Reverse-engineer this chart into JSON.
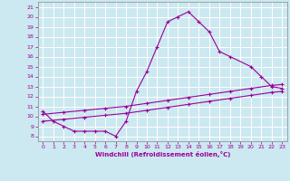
{
  "xlabel": "Windchill (Refroidissement éolien,°C)",
  "bg_color": "#cce8f0",
  "grid_color": "#ffffff",
  "line_color": "#990099",
  "spine_color": "#888888",
  "xlim": [
    -0.5,
    23.5
  ],
  "ylim": [
    7.5,
    21.5
  ],
  "xticks": [
    0,
    1,
    2,
    3,
    4,
    5,
    6,
    7,
    8,
    9,
    10,
    11,
    12,
    13,
    14,
    15,
    16,
    17,
    18,
    19,
    20,
    21,
    22,
    23
  ],
  "yticks": [
    8,
    9,
    10,
    11,
    12,
    13,
    14,
    15,
    16,
    17,
    18,
    19,
    20,
    21
  ],
  "line1_x": [
    0,
    1,
    2,
    3,
    4,
    5,
    6,
    7,
    8,
    9,
    10,
    11,
    12,
    13,
    14,
    15,
    16,
    17,
    18,
    20,
    21,
    22,
    23
  ],
  "line1_y": [
    10.5,
    9.5,
    9.0,
    8.5,
    8.5,
    8.5,
    8.5,
    8.0,
    9.5,
    12.5,
    14.5,
    17.0,
    19.5,
    20.0,
    20.5,
    19.5,
    18.5,
    16.5,
    16.0,
    15.0,
    14.0,
    13.0,
    12.8
  ],
  "line2_x": [
    0,
    2,
    4,
    6,
    8,
    10,
    12,
    14,
    16,
    18,
    20,
    22,
    23
  ],
  "line2_y": [
    9.5,
    9.7,
    9.9,
    10.1,
    10.3,
    10.6,
    10.9,
    11.2,
    11.5,
    11.8,
    12.1,
    12.4,
    12.5
  ],
  "line3_x": [
    0,
    2,
    4,
    6,
    8,
    10,
    12,
    14,
    16,
    18,
    20,
    22,
    23
  ],
  "line3_y": [
    10.2,
    10.4,
    10.6,
    10.8,
    11.0,
    11.3,
    11.6,
    11.9,
    12.2,
    12.5,
    12.8,
    13.1,
    13.2
  ]
}
